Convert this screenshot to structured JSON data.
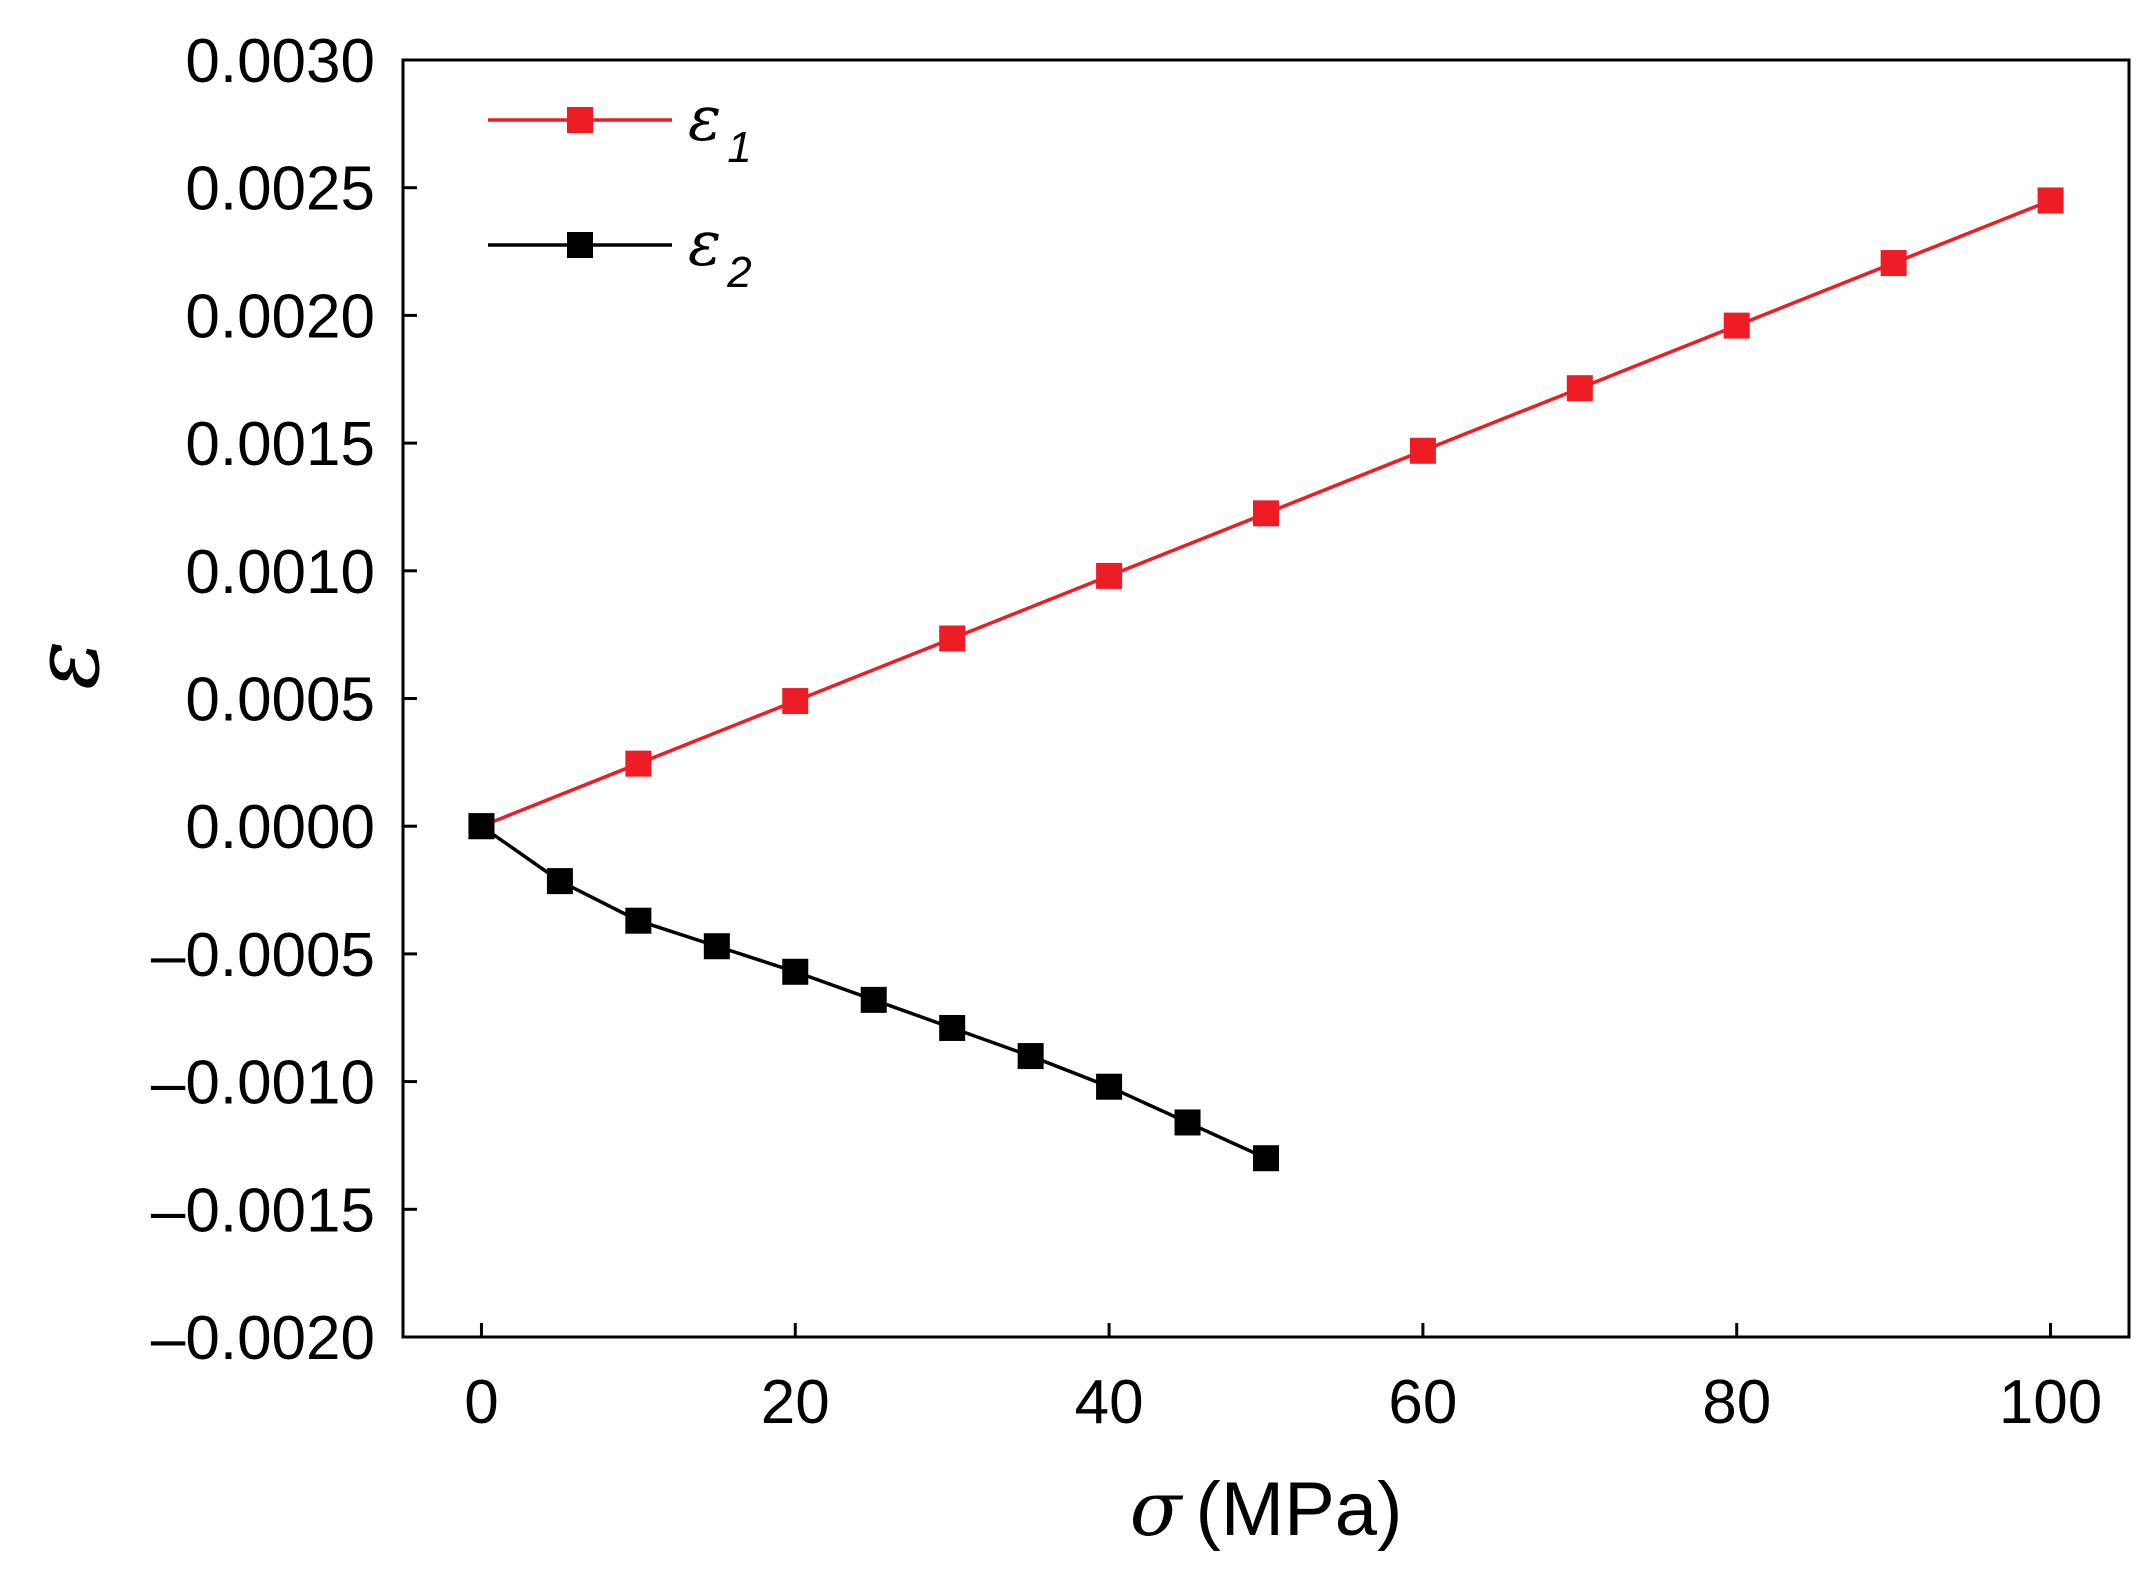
{
  "chart_data": {
    "type": "line",
    "title": "",
    "xlabel": {
      "symbol": "σ",
      "unit": "(MPa)"
    },
    "ylabel": "ε",
    "xlim": [
      -5,
      105
    ],
    "ylim": [
      -0.002,
      0.003
    ],
    "x_ticks": [
      0,
      20,
      40,
      60,
      80,
      100
    ],
    "x_tick_labels": [
      "0",
      "20",
      "40",
      "60",
      "80",
      "100"
    ],
    "y_ticks": [
      -0.002,
      -0.0015,
      -0.001,
      -0.0005,
      0,
      0.0005,
      0.001,
      0.0015,
      0.002,
      0.0025,
      0.003
    ],
    "y_tick_labels": [
      "–0.0020",
      "–0.0015",
      "–0.0010",
      "–0.0005",
      "0.0000",
      "0.0005",
      "0.0010",
      "0.0015",
      "0.0020",
      "0.0025",
      "0.0030"
    ],
    "grid": false,
    "legend_position": "top-left",
    "series": [
      {
        "name": "ε1",
        "symbol": "ε",
        "subscript": "1",
        "color": "#ee1c24",
        "marker": "square",
        "x": [
          0,
          10,
          20,
          30,
          40,
          50,
          60,
          70,
          80,
          90,
          100
        ],
        "y": [
          0,
          0.000245,
          0.00049,
          0.000735,
          0.00098,
          0.001225,
          0.00147,
          0.001715,
          0.00196,
          0.002205,
          0.00245
        ]
      },
      {
        "name": "ε2",
        "symbol": "ε",
        "subscript": "2",
        "color": "#000000",
        "marker": "square",
        "x": [
          0,
          5,
          10,
          15,
          20,
          25,
          30,
          35,
          40,
          45,
          50
        ],
        "y": [
          0,
          -0.000215,
          -0.00037,
          -0.00047,
          -0.00057,
          -0.00068,
          -0.00079,
          -0.0009,
          -0.00102,
          -0.00116,
          -0.0013
        ]
      }
    ]
  }
}
